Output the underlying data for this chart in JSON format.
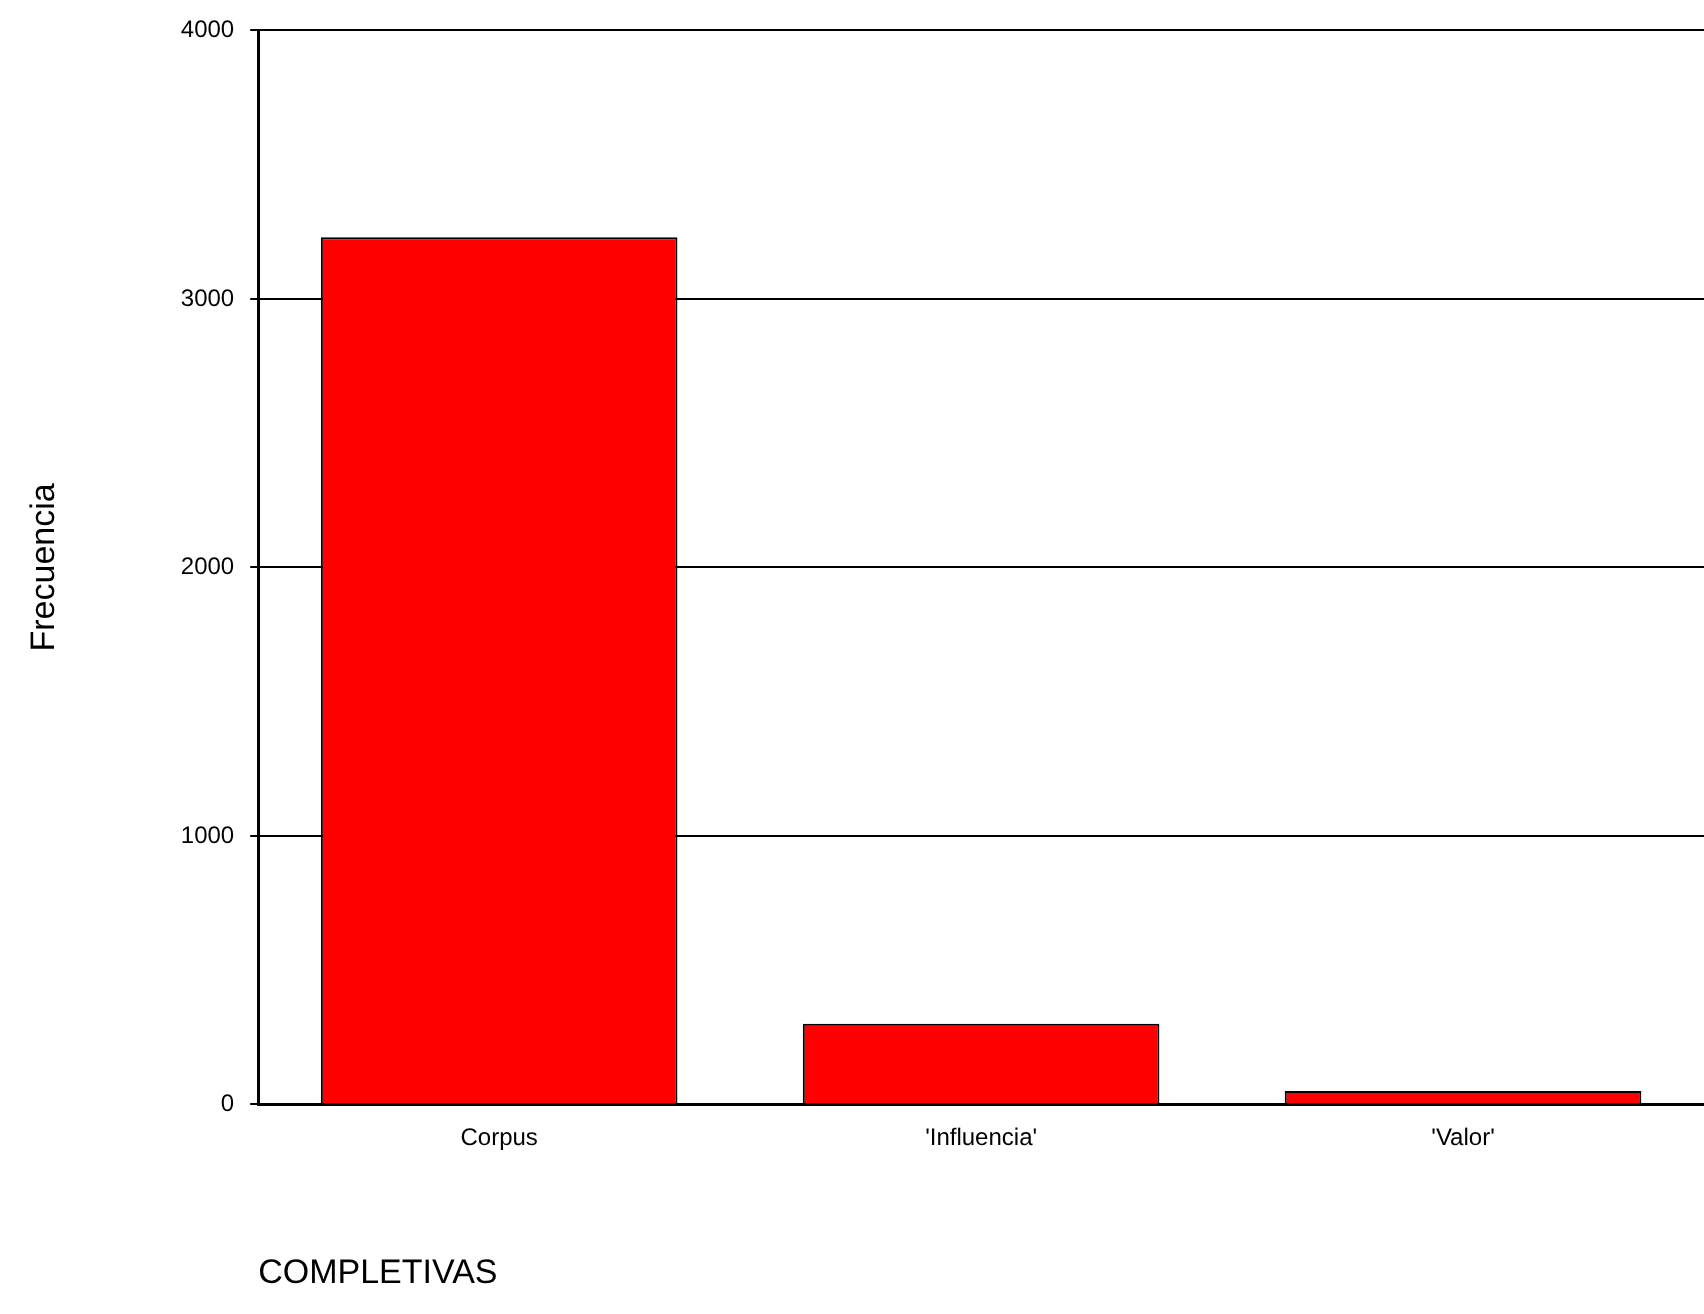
{
  "chart_data": {
    "type": "bar",
    "xlabel": "COMPLETIVAS",
    "ylabel": "Frecuencia",
    "categories": [
      "Corpus",
      "'Influencia'",
      "'Valor'"
    ],
    "values": [
      3230,
      300,
      50
    ],
    "color": "#ff0000",
    "ylim": [
      0,
      4000
    ],
    "yticks": [
      0,
      1000,
      2000,
      3000,
      4000
    ],
    "grid": "y",
    "legend": false
  }
}
